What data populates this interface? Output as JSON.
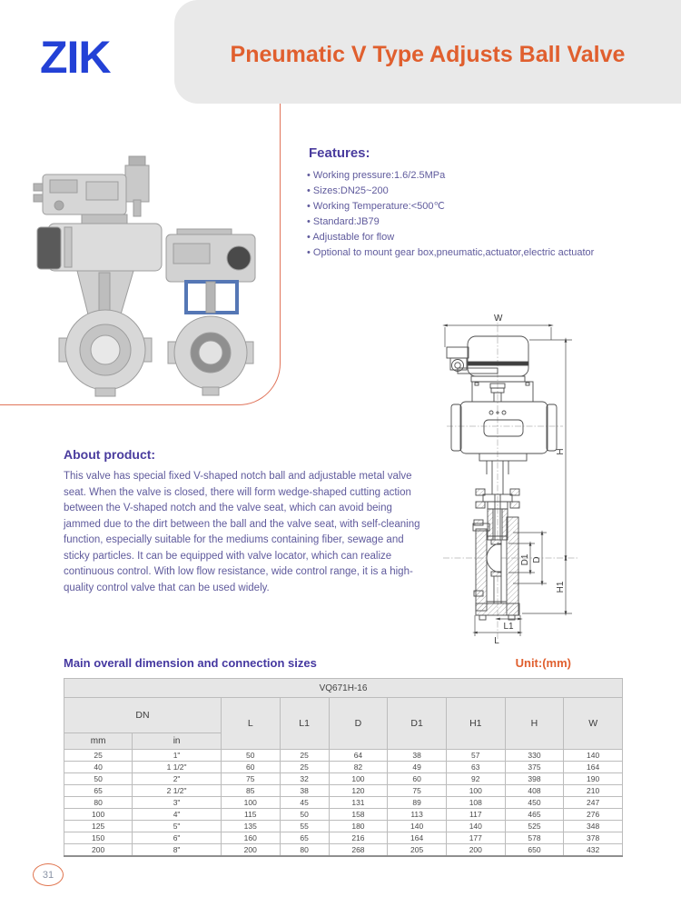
{
  "header": {
    "logo": "ZIK",
    "title": "Pneumatic V Type Adjusts Ball Valve"
  },
  "features": {
    "heading": "Features:",
    "items": [
      "Working pressure:1.6/2.5MPa",
      "Sizes:DN25~200",
      "Working Temperature:<500℃",
      "Standard:JB79",
      "Adjustable for flow",
      "Optional to mount gear box,pneumatic,actuator,electric actuator"
    ]
  },
  "about": {
    "heading": "About product:",
    "body": "This valve has special fixed V-shaped notch ball and adjustable metal valve seat. When the valve is closed, there will form wedge-shaped cutting action between the V-shaped notch and the valve seat, which can avoid being jammed due to the dirt between the ball and the valve seat, with self-cleaning function, especially suitable for the mediums containing fiber, sewage and sticky particles. It can be equipped with valve locator, which can realize continuous control. With low flow resistance, wide control range, it is a high-quality control valve that can be used widely."
  },
  "drawing": {
    "labels": {
      "w": "W",
      "h": "H",
      "d1": "D1",
      "d": "D",
      "h1": "H1",
      "l1": "L1",
      "l": "L"
    }
  },
  "dimensions": {
    "heading": "Main overall dimension and connection sizes",
    "unit": "Unit:(mm)",
    "table": {
      "model": "VQ671H-16",
      "dn_label": "DN",
      "sub_headers": [
        "mm",
        "in"
      ],
      "columns": [
        "L",
        "L1",
        "D",
        "D1",
        "H1",
        "H",
        "W"
      ],
      "rows": [
        [
          "25",
          "1\"",
          "50",
          "25",
          "64",
          "38",
          "57",
          "330",
          "140"
        ],
        [
          "40",
          "1 1/2\"",
          "60",
          "25",
          "82",
          "49",
          "63",
          "375",
          "164"
        ],
        [
          "50",
          "2\"",
          "75",
          "32",
          "100",
          "60",
          "92",
          "398",
          "190"
        ],
        [
          "65",
          "2 1/2\"",
          "85",
          "38",
          "120",
          "75",
          "100",
          "408",
          "210"
        ],
        [
          "80",
          "3\"",
          "100",
          "45",
          "131",
          "89",
          "108",
          "450",
          "247"
        ],
        [
          "100",
          "4\"",
          "115",
          "50",
          "158",
          "113",
          "117",
          "465",
          "276"
        ],
        [
          "125",
          "5\"",
          "135",
          "55",
          "180",
          "140",
          "140",
          "525",
          "348"
        ],
        [
          "150",
          "6\"",
          "160",
          "65",
          "216",
          "164",
          "177",
          "578",
          "378"
        ],
        [
          "200",
          "8\"",
          "200",
          "80",
          "268",
          "205",
          "200",
          "650",
          "432"
        ]
      ]
    }
  },
  "footer": {
    "page_number": "31"
  },
  "colors": {
    "brand_blue": "#2341d6",
    "accent_orange": "#e05f2e",
    "heading_purple": "#4a3c9e",
    "body_purple": "#5f5a9c",
    "band_gray": "#e9e9e9"
  }
}
